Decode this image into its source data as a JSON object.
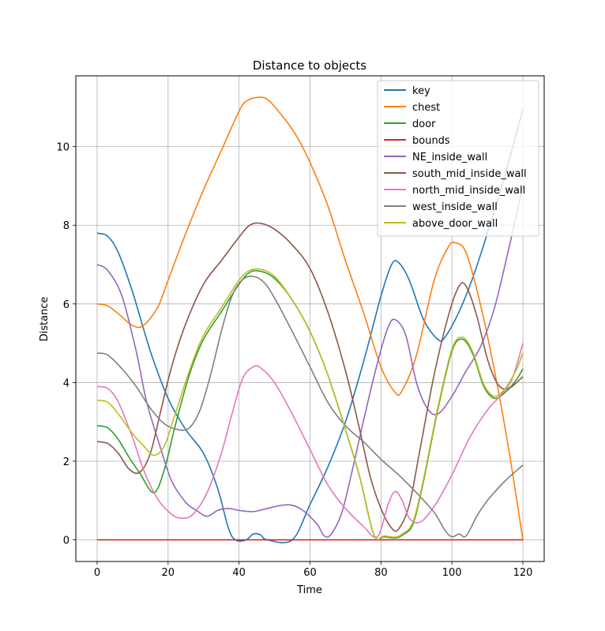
{
  "chart_data": {
    "type": "line",
    "title": "Distance to objects",
    "xlabel": "Time",
    "ylabel": "Distance",
    "xlim": [
      -6,
      126
    ],
    "ylim": [
      -0.55,
      11.8
    ],
    "xticks": [
      0,
      20,
      40,
      60,
      80,
      100,
      120
    ],
    "yticks": [
      0,
      2,
      4,
      6,
      8,
      10
    ],
    "grid": true,
    "legend_position": "top-right",
    "series": [
      {
        "name": "key",
        "color": "#1f77b4",
        "points": [
          [
            0,
            7.8
          ],
          [
            3,
            7.72
          ],
          [
            6,
            7.3
          ],
          [
            10,
            6.3
          ],
          [
            15,
            4.8
          ],
          [
            20,
            3.6
          ],
          [
            25,
            2.8
          ],
          [
            30,
            2.2
          ],
          [
            34,
            1.3
          ],
          [
            37,
            0.3
          ],
          [
            39,
            0.0
          ],
          [
            42,
            0.0
          ],
          [
            44,
            0.15
          ],
          [
            46,
            0.13
          ],
          [
            48,
            0.0
          ],
          [
            55,
            0.0
          ],
          [
            60,
            0.9
          ],
          [
            65,
            1.85
          ],
          [
            70,
            3.0
          ],
          [
            75,
            4.5
          ],
          [
            80,
            6.2
          ],
          [
            83,
            7.0
          ],
          [
            85,
            7.05
          ],
          [
            88,
            6.6
          ],
          [
            92,
            5.6
          ],
          [
            96,
            5.1
          ],
          [
            98,
            5.15
          ],
          [
            102,
            5.8
          ],
          [
            106,
            6.7
          ],
          [
            110,
            7.8
          ],
          [
            115,
            9.3
          ],
          [
            120,
            10.95
          ]
        ]
      },
      {
        "name": "chest",
        "color": "#ff7f0e",
        "points": [
          [
            0,
            6.0
          ],
          [
            3,
            5.95
          ],
          [
            6,
            5.75
          ],
          [
            10,
            5.45
          ],
          [
            13,
            5.45
          ],
          [
            17,
            5.9
          ],
          [
            20,
            6.6
          ],
          [
            25,
            7.8
          ],
          [
            30,
            8.9
          ],
          [
            35,
            9.9
          ],
          [
            40,
            10.9
          ],
          [
            42,
            11.15
          ],
          [
            45,
            11.25
          ],
          [
            48,
            11.2
          ],
          [
            52,
            10.8
          ],
          [
            56,
            10.3
          ],
          [
            60,
            9.6
          ],
          [
            65,
            8.5
          ],
          [
            70,
            7.1
          ],
          [
            75,
            5.8
          ],
          [
            80,
            4.4
          ],
          [
            84,
            3.75
          ],
          [
            86,
            3.8
          ],
          [
            90,
            4.7
          ],
          [
            95,
            6.6
          ],
          [
            99,
            7.45
          ],
          [
            101,
            7.55
          ],
          [
            104,
            7.3
          ],
          [
            108,
            6.0
          ],
          [
            112,
            4.3
          ],
          [
            116,
            2.3
          ],
          [
            120,
            0.0
          ]
        ]
      },
      {
        "name": "door",
        "color": "#2ca02c",
        "points": [
          [
            0,
            2.9
          ],
          [
            3,
            2.85
          ],
          [
            6,
            2.55
          ],
          [
            9,
            2.1
          ],
          [
            12,
            1.7
          ],
          [
            16,
            1.2
          ],
          [
            19,
            1.8
          ],
          [
            22,
            2.9
          ],
          [
            26,
            4.2
          ],
          [
            30,
            5.1
          ],
          [
            35,
            5.8
          ],
          [
            40,
            6.5
          ],
          [
            43,
            6.8
          ],
          [
            46,
            6.83
          ],
          [
            50,
            6.65
          ],
          [
            55,
            6.1
          ],
          [
            60,
            5.3
          ],
          [
            65,
            4.2
          ],
          [
            70,
            2.8
          ],
          [
            74,
            1.6
          ],
          [
            78,
            0.13
          ],
          [
            81,
            0.08
          ],
          [
            84,
            0.05
          ],
          [
            86,
            0.12
          ],
          [
            89,
            0.4
          ],
          [
            92,
            1.5
          ],
          [
            96,
            3.3
          ],
          [
            100,
            4.8
          ],
          [
            103,
            5.1
          ],
          [
            106,
            4.7
          ],
          [
            109,
            3.9
          ],
          [
            112,
            3.6
          ],
          [
            115,
            3.75
          ],
          [
            118,
            4.05
          ],
          [
            120,
            4.35
          ]
        ]
      },
      {
        "name": "bounds",
        "color": "#d62728",
        "points": [
          [
            0,
            0.0
          ],
          [
            120,
            0.0
          ]
        ]
      },
      {
        "name": "NE_inside_wall",
        "color": "#9467bd",
        "points": [
          [
            0,
            7.0
          ],
          [
            3,
            6.85
          ],
          [
            7,
            6.2
          ],
          [
            11,
            4.8
          ],
          [
            14,
            3.5
          ],
          [
            18,
            2.3
          ],
          [
            21,
            1.5
          ],
          [
            25,
            0.95
          ],
          [
            28,
            0.75
          ],
          [
            31,
            0.6
          ],
          [
            34,
            0.75
          ],
          [
            37,
            0.8
          ],
          [
            40,
            0.75
          ],
          [
            44,
            0.72
          ],
          [
            48,
            0.8
          ],
          [
            52,
            0.88
          ],
          [
            55,
            0.88
          ],
          [
            58,
            0.75
          ],
          [
            62,
            0.4
          ],
          [
            64,
            0.1
          ],
          [
            66,
            0.15
          ],
          [
            69,
            0.7
          ],
          [
            72,
            1.8
          ],
          [
            75,
            3.0
          ],
          [
            79,
            4.5
          ],
          [
            82,
            5.4
          ],
          [
            84,
            5.6
          ],
          [
            87,
            5.2
          ],
          [
            90,
            4.0
          ],
          [
            93,
            3.35
          ],
          [
            96,
            3.2
          ],
          [
            100,
            3.65
          ],
          [
            104,
            4.3
          ],
          [
            108,
            4.9
          ],
          [
            112,
            5.9
          ],
          [
            116,
            7.4
          ],
          [
            120,
            9.0
          ]
        ]
      },
      {
        "name": "south_mid_inside_wall",
        "color": "#8c564b",
        "points": [
          [
            0,
            2.5
          ],
          [
            3,
            2.45
          ],
          [
            6,
            2.2
          ],
          [
            9,
            1.8
          ],
          [
            12,
            1.72
          ],
          [
            15,
            2.2
          ],
          [
            18,
            3.3
          ],
          [
            21,
            4.4
          ],
          [
            25,
            5.5
          ],
          [
            30,
            6.5
          ],
          [
            35,
            7.1
          ],
          [
            40,
            7.7
          ],
          [
            43,
            8.0
          ],
          [
            46,
            8.05
          ],
          [
            50,
            7.9
          ],
          [
            55,
            7.5
          ],
          [
            60,
            6.9
          ],
          [
            65,
            5.8
          ],
          [
            70,
            4.3
          ],
          [
            74,
            2.8
          ],
          [
            77,
            1.6
          ],
          [
            80,
            0.8
          ],
          [
            83,
            0.3
          ],
          [
            85,
            0.28
          ],
          [
            88,
            0.9
          ],
          [
            91,
            2.3
          ],
          [
            95,
            4.2
          ],
          [
            99,
            5.7
          ],
          [
            102,
            6.45
          ],
          [
            104,
            6.45
          ],
          [
            107,
            5.7
          ],
          [
            110,
            4.6
          ],
          [
            113,
            3.95
          ],
          [
            116,
            3.85
          ],
          [
            120,
            4.15
          ]
        ]
      },
      {
        "name": "north_mid_inside_wall",
        "color": "#e377c2",
        "points": [
          [
            0,
            3.9
          ],
          [
            3,
            3.85
          ],
          [
            6,
            3.5
          ],
          [
            10,
            2.6
          ],
          [
            13,
            1.8
          ],
          [
            17,
            1.05
          ],
          [
            21,
            0.65
          ],
          [
            24,
            0.55
          ],
          [
            27,
            0.65
          ],
          [
            31,
            1.2
          ],
          [
            35,
            2.2
          ],
          [
            38,
            3.2
          ],
          [
            41,
            4.1
          ],
          [
            44,
            4.4
          ],
          [
            46,
            4.38
          ],
          [
            50,
            4.0
          ],
          [
            55,
            3.2
          ],
          [
            60,
            2.3
          ],
          [
            65,
            1.4
          ],
          [
            70,
            0.8
          ],
          [
            75,
            0.35
          ],
          [
            79,
            0.08
          ],
          [
            82,
            0.9
          ],
          [
            84,
            1.23
          ],
          [
            86,
            1.0
          ],
          [
            88,
            0.55
          ],
          [
            91,
            0.45
          ],
          [
            95,
            0.85
          ],
          [
            100,
            1.65
          ],
          [
            105,
            2.6
          ],
          [
            110,
            3.3
          ],
          [
            114,
            3.7
          ],
          [
            117,
            4.1
          ],
          [
            120,
            5.0
          ]
        ]
      },
      {
        "name": "west_inside_wall",
        "color": "#7f7f7f",
        "points": [
          [
            0,
            4.75
          ],
          [
            3,
            4.7
          ],
          [
            7,
            4.35
          ],
          [
            11,
            3.9
          ],
          [
            15,
            3.35
          ],
          [
            19,
            2.95
          ],
          [
            23,
            2.8
          ],
          [
            26,
            2.85
          ],
          [
            29,
            3.3
          ],
          [
            32,
            4.2
          ],
          [
            35,
            5.3
          ],
          [
            38,
            6.2
          ],
          [
            41,
            6.62
          ],
          [
            44,
            6.7
          ],
          [
            47,
            6.55
          ],
          [
            50,
            6.15
          ],
          [
            55,
            5.3
          ],
          [
            60,
            4.4
          ],
          [
            65,
            3.5
          ],
          [
            70,
            2.9
          ],
          [
            75,
            2.5
          ],
          [
            80,
            2.05
          ],
          [
            85,
            1.65
          ],
          [
            90,
            1.2
          ],
          [
            95,
            0.7
          ],
          [
            98,
            0.25
          ],
          [
            100,
            0.08
          ],
          [
            102,
            0.15
          ],
          [
            104,
            0.1
          ],
          [
            107,
            0.6
          ],
          [
            110,
            1.0
          ],
          [
            115,
            1.5
          ],
          [
            120,
            1.9
          ]
        ]
      },
      {
        "name": "above_door_wall",
        "color": "#bcbd22",
        "points": [
          [
            0,
            3.55
          ],
          [
            3,
            3.5
          ],
          [
            6,
            3.2
          ],
          [
            10,
            2.7
          ],
          [
            13,
            2.4
          ],
          [
            16,
            2.15
          ],
          [
            19,
            2.4
          ],
          [
            22,
            3.2
          ],
          [
            26,
            4.3
          ],
          [
            30,
            5.2
          ],
          [
            35,
            5.9
          ],
          [
            40,
            6.6
          ],
          [
            43,
            6.85
          ],
          [
            46,
            6.88
          ],
          [
            50,
            6.7
          ],
          [
            55,
            6.1
          ],
          [
            60,
            5.3
          ],
          [
            65,
            4.2
          ],
          [
            70,
            2.8
          ],
          [
            74,
            1.6
          ],
          [
            78,
            0.13
          ],
          [
            81,
            0.1
          ],
          [
            84,
            0.07
          ],
          [
            86,
            0.15
          ],
          [
            89,
            0.45
          ],
          [
            92,
            1.55
          ],
          [
            96,
            3.35
          ],
          [
            100,
            4.85
          ],
          [
            103,
            5.15
          ],
          [
            106,
            4.75
          ],
          [
            109,
            3.95
          ],
          [
            112,
            3.65
          ],
          [
            115,
            3.85
          ],
          [
            118,
            4.3
          ],
          [
            120,
            4.75
          ]
        ]
      }
    ]
  }
}
